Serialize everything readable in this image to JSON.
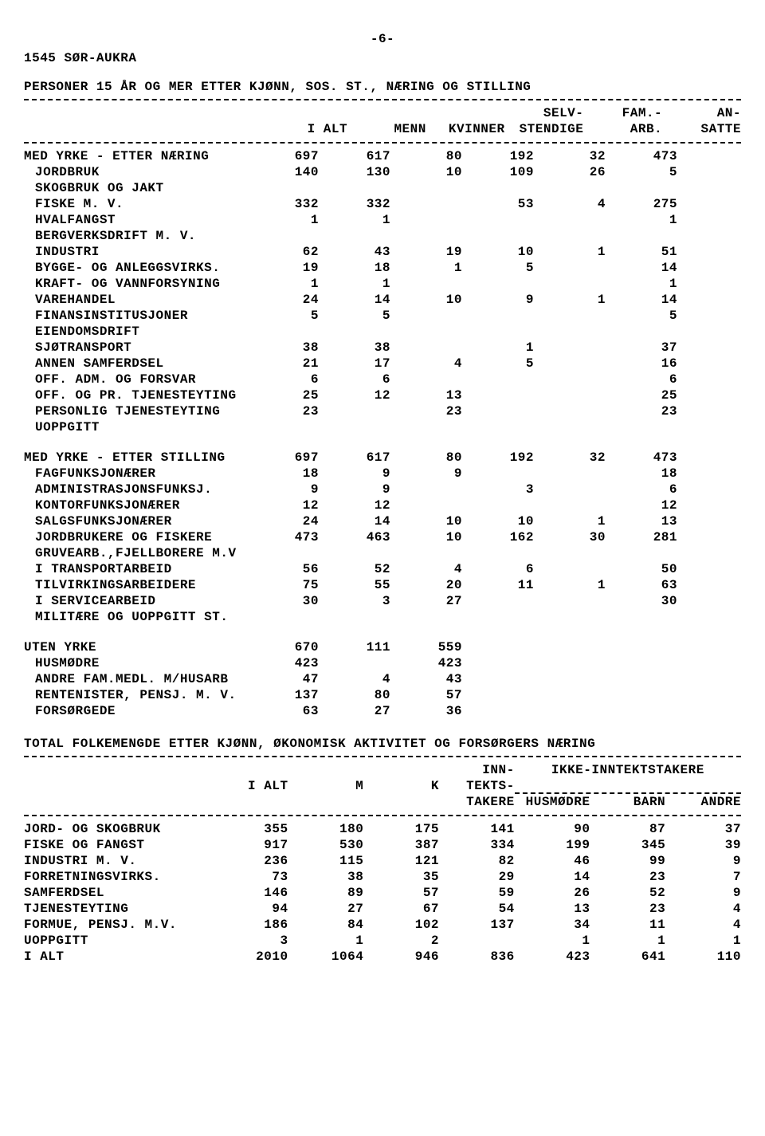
{
  "page_number": "-6-",
  "region_code": "1545 SØR-AUKRA",
  "table1": {
    "title": "PERSONER 15 ÅR OG MER ETTER KJØNN, SOS. ST., NÆRING OG STILLING",
    "headers": {
      "c1": "I ALT",
      "c2": "MENN",
      "c3": "KVINNER",
      "c4a": "SELV-",
      "c4b": "STENDIGE",
      "c5a": "FAM.-",
      "c5b": "ARB.",
      "c6a": "AN-",
      "c6b": "SATTE"
    },
    "group1_title": "MED YRKE - ETTER NÆRING",
    "group1_totals": [
      "697",
      "617",
      "80",
      "192",
      "32",
      "473"
    ],
    "rows1": [
      {
        "label": "JORDBRUK",
        "v": [
          "140",
          "130",
          "10",
          "109",
          "26",
          "5"
        ]
      },
      {
        "label": "SKOGBRUK OG JAKT",
        "v": [
          "",
          "",
          "",
          "",
          "",
          ""
        ]
      },
      {
        "label": "FISKE M. V.",
        "v": [
          "332",
          "332",
          "",
          "53",
          "4",
          "275"
        ]
      },
      {
        "label": "HVALFANGST",
        "v": [
          "1",
          "1",
          "",
          "",
          "",
          "1"
        ]
      },
      {
        "label": "BERGVERKSDRIFT M. V.",
        "v": [
          "",
          "",
          "",
          "",
          "",
          ""
        ]
      },
      {
        "label": "INDUSTRI",
        "v": [
          "62",
          "43",
          "19",
          "10",
          "1",
          "51"
        ]
      },
      {
        "label": "BYGGE- OG ANLEGGSVIRKS.",
        "v": [
          "19",
          "18",
          "1",
          "5",
          "",
          "14"
        ]
      },
      {
        "label": "KRAFT- OG VANNFORSYNING",
        "v": [
          "1",
          "1",
          "",
          "",
          "",
          "1"
        ]
      },
      {
        "label": "VAREHANDEL",
        "v": [
          "24",
          "14",
          "10",
          "9",
          "1",
          "14"
        ]
      },
      {
        "label": "FINANSINSTITUSJONER",
        "v": [
          "5",
          "5",
          "",
          "",
          "",
          "5"
        ]
      },
      {
        "label": "EIENDOMSDRIFT",
        "v": [
          "",
          "",
          "",
          "",
          "",
          ""
        ]
      },
      {
        "label": "SJØTRANSPORT",
        "v": [
          "38",
          "38",
          "",
          "1",
          "",
          "37"
        ]
      },
      {
        "label": "ANNEN SAMFERDSEL",
        "v": [
          "21",
          "17",
          "4",
          "5",
          "",
          "16"
        ]
      },
      {
        "label": "OFF. ADM. OG FORSVAR",
        "v": [
          "6",
          "6",
          "",
          "",
          "",
          "6"
        ]
      },
      {
        "label": "OFF. OG PR. TJENESTEYTING",
        "v": [
          "25",
          "12",
          "13",
          "",
          "",
          "25"
        ]
      },
      {
        "label": "PERSONLIG TJENESTEYTING",
        "v": [
          "23",
          "",
          "23",
          "",
          "",
          "23"
        ]
      },
      {
        "label": "UOPPGITT",
        "v": [
          "",
          "",
          "",
          "",
          "",
          ""
        ]
      }
    ],
    "group2_title": "MED YRKE - ETTER STILLING",
    "group2_totals": [
      "697",
      "617",
      "80",
      "192",
      "32",
      "473"
    ],
    "rows2": [
      {
        "label": "FAGFUNKSJONÆRER",
        "v": [
          "18",
          "9",
          "9",
          "",
          "",
          "18"
        ]
      },
      {
        "label": "ADMINISTRASJONSFUNKSJ.",
        "v": [
          "9",
          "9",
          "",
          "3",
          "",
          "6"
        ]
      },
      {
        "label": "KONTORFUNKSJONÆRER",
        "v": [
          "12",
          "12",
          "",
          "",
          "",
          "12"
        ]
      },
      {
        "label": "SALGSFUNKSJONÆRER",
        "v": [
          "24",
          "14",
          "10",
          "10",
          "1",
          "13"
        ]
      },
      {
        "label": "JORDBRUKERE OG FISKERE",
        "v": [
          "473",
          "463",
          "10",
          "162",
          "30",
          "281"
        ]
      },
      {
        "label": "GRUVEARB.,FJELLBORERE M.V",
        "v": [
          "",
          "",
          "",
          "",
          "",
          ""
        ]
      },
      {
        "label": "I TRANSPORTARBEID",
        "v": [
          "56",
          "52",
          "4",
          "6",
          "",
          "50"
        ]
      },
      {
        "label": "TILVIRKINGSARBEIDERE",
        "v": [
          "75",
          "55",
          "20",
          "11",
          "1",
          "63"
        ]
      },
      {
        "label": "I SERVICEARBEID",
        "v": [
          "30",
          "3",
          "27",
          "",
          "",
          "30"
        ]
      },
      {
        "label": "MILITÆRE OG UOPPGITT ST.",
        "v": [
          "",
          "",
          "",
          "",
          "",
          ""
        ]
      }
    ],
    "group3_title": "UTEN YRKE",
    "group3_totals": [
      "670",
      "111",
      "559",
      "",
      "",
      ""
    ],
    "rows3": [
      {
        "label": "HUSMØDRE",
        "v": [
          "423",
          "",
          "423",
          "",
          "",
          ""
        ]
      },
      {
        "label": "ANDRE FAM.MEDL. M/HUSARB",
        "v": [
          "47",
          "4",
          "43",
          "",
          "",
          ""
        ]
      },
      {
        "label": "RENTENISTER, PENSJ. M. V.",
        "v": [
          "137",
          "80",
          "57",
          "",
          "",
          ""
        ]
      },
      {
        "label": "FORSØRGEDE",
        "v": [
          "63",
          "27",
          "36",
          "",
          "",
          ""
        ]
      }
    ]
  },
  "table2": {
    "title": "TOTAL FOLKEMENGDE ETTER KJØNN, ØKONOMISK AKTIVITET OG FORSØRGERS NÆRING",
    "headers": {
      "c1": "I ALT",
      "c2": "M",
      "c3": "K",
      "c4a": "INN-",
      "c4b": "TEKTS-",
      "c4c": "TAKERE",
      "group": "IKKE-INNTEKTSTAKERE",
      "c5": "HUSMØDRE",
      "c6": "BARN",
      "c7": "ANDRE"
    },
    "rows": [
      {
        "label": "JORD- OG SKOGBRUK",
        "v": [
          "355",
          "180",
          "175",
          "141",
          "90",
          "87",
          "37"
        ]
      },
      {
        "label": "FISKE OG FANGST",
        "v": [
          "917",
          "530",
          "387",
          "334",
          "199",
          "345",
          "39"
        ]
      },
      {
        "label": "INDUSTRI M. V.",
        "v": [
          "236",
          "115",
          "121",
          "82",
          "46",
          "99",
          "9"
        ]
      },
      {
        "label": "FORRETNINGSVIRKS.",
        "v": [
          "73",
          "38",
          "35",
          "29",
          "14",
          "23",
          "7"
        ]
      },
      {
        "label": "SAMFERDSEL",
        "v": [
          "146",
          "89",
          "57",
          "59",
          "26",
          "52",
          "9"
        ]
      },
      {
        "label": "TJENESTEYTING",
        "v": [
          "94",
          "27",
          "67",
          "54",
          "13",
          "23",
          "4"
        ]
      },
      {
        "label": "FORMUE, PENSJ. M.V.",
        "v": [
          "186",
          "84",
          "102",
          "137",
          "34",
          "11",
          "4"
        ]
      },
      {
        "label": "UOPPGITT",
        "v": [
          "3",
          "1",
          "2",
          "",
          "1",
          "1",
          "1"
        ]
      },
      {
        "label": "I ALT",
        "v": [
          "2010",
          "1064",
          "946",
          "836",
          "423",
          "641",
          "110"
        ]
      }
    ]
  }
}
